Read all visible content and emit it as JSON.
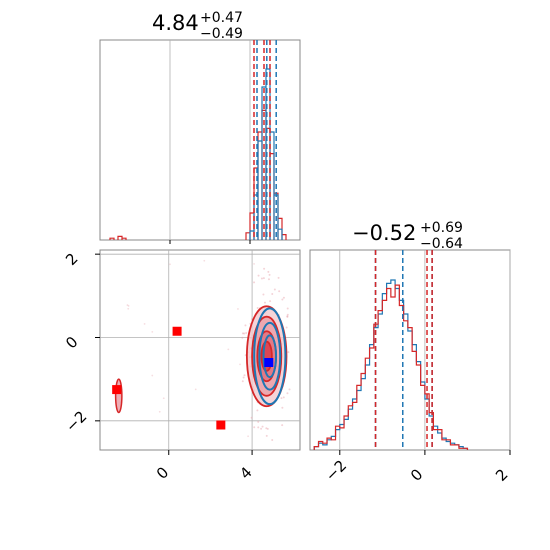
{
  "chart_data": {
    "type": "corner",
    "parameters": [
      {
        "median": "4.84",
        "plus": "+0.47",
        "minus": "−0.49",
        "histogram_range": [
          -3.5,
          6.5
        ],
        "bin_width": 0.2,
        "blue_dashed_lines": [
          4.35,
          4.84,
          5.31
        ],
        "red_dashed_lines": [
          4.2,
          4.7,
          5.0
        ],
        "blue_hist": [
          {
            "x": 4.0,
            "y": 0.05
          },
          {
            "x": 4.2,
            "y": 0.25
          },
          {
            "x": 4.4,
            "y": 0.55
          },
          {
            "x": 4.6,
            "y": 0.85
          },
          {
            "x": 4.8,
            "y": 0.95
          },
          {
            "x": 5.0,
            "y": 0.6
          },
          {
            "x": 5.2,
            "y": 0.25
          },
          {
            "x": 5.4,
            "y": 0.06
          }
        ],
        "red_hist": [
          {
            "x": -3.0,
            "y": 0.01
          },
          {
            "x": -2.6,
            "y": 0.02
          },
          {
            "x": -2.4,
            "y": 0.01
          },
          {
            "x": 3.8,
            "y": 0.04
          },
          {
            "x": 4.0,
            "y": 0.15
          },
          {
            "x": 4.2,
            "y": 0.4
          },
          {
            "x": 4.4,
            "y": 0.6
          },
          {
            "x": 4.6,
            "y": 0.72
          },
          {
            "x": 4.8,
            "y": 0.62
          },
          {
            "x": 5.0,
            "y": 0.48
          },
          {
            "x": 5.2,
            "y": 0.26
          },
          {
            "x": 5.4,
            "y": 0.12
          },
          {
            "x": 5.6,
            "y": 0.03
          }
        ]
      },
      {
        "median": "−0.52",
        "plus": "+0.69",
        "minus": "−0.64",
        "histogram_range": [
          -2.7,
          2.0
        ],
        "bin_width": 0.1,
        "blue_dashed_lines": [
          -1.16,
          -0.52,
          0.17
        ],
        "red_dashed_lines": [
          -1.16,
          0.05,
          0.17
        ],
        "blue_hist_heights": [
          0.02,
          0.04,
          0.03,
          0.06,
          0.08,
          0.12,
          0.15,
          0.18,
          0.24,
          0.3,
          0.35,
          0.42,
          0.5,
          0.62,
          0.72,
          0.8,
          0.92,
          0.98,
          1.0,
          0.95,
          0.88,
          0.8,
          0.7,
          0.62,
          0.52,
          0.4,
          0.3,
          0.2,
          0.14,
          0.1,
          0.07,
          0.05,
          0.04,
          0.03,
          0.02,
          0.01
        ],
        "red_hist_heights": [
          0.02,
          0.05,
          0.04,
          0.07,
          0.06,
          0.14,
          0.13,
          0.2,
          0.26,
          0.28,
          0.38,
          0.45,
          0.54,
          0.6,
          0.74,
          0.82,
          0.88,
          0.95,
          0.9,
          0.97,
          0.85,
          0.76,
          0.72,
          0.58,
          0.5,
          0.38,
          0.33,
          0.22,
          0.12,
          0.12,
          0.06,
          0.06,
          0.03,
          0.03,
          0.01,
          0.01
        ],
        "hist_start": -2.6
      }
    ],
    "scatter": {
      "x_range": [
        -3.3,
        6.3
      ],
      "y_range": [
        -2.7,
        2.1
      ],
      "red_markers": [
        {
          "x": -2.5,
          "y": -1.25
        },
        {
          "x": 0.4,
          "y": 0.15
        },
        {
          "x": 2.5,
          "y": -2.1
        }
      ],
      "blue_marker": {
        "x": 4.8,
        "y": -0.6
      },
      "red_contour_center": {
        "x": 4.7,
        "y": -0.45
      },
      "red_contour_radii": [
        [
          0.95,
          1.2
        ],
        [
          0.7,
          0.95
        ],
        [
          0.45,
          0.6
        ],
        [
          0.25,
          0.35
        ]
      ],
      "blue_contour_center": {
        "x": 4.85,
        "y": -0.45
      },
      "blue_contour_radii": [
        [
          0.75,
          1.15
        ],
        [
          0.5,
          0.8
        ],
        [
          0.3,
          0.5
        ]
      ],
      "red_island_center": {
        "x": -2.4,
        "y": -1.4
      },
      "red_island_radii": [
        0.15,
        0.4
      ]
    },
    "x_ticks_param1": [
      "0",
      "4"
    ],
    "x_tick_values_param1": [
      0,
      4
    ],
    "y_ticks_param2": [
      "2",
      "0",
      "−2"
    ],
    "y_tick_values_param2": [
      2,
      0,
      -2
    ],
    "x_ticks_param2": [
      "−2",
      "0",
      "2"
    ],
    "x_tick_values_param2": [
      -2,
      0,
      2
    ],
    "colors": {
      "blue": "#1f77b4",
      "red": "#d62728",
      "grid": "#b0b0b0",
      "marker_blue": "#0000ff",
      "marker_red": "#ff0000"
    }
  }
}
